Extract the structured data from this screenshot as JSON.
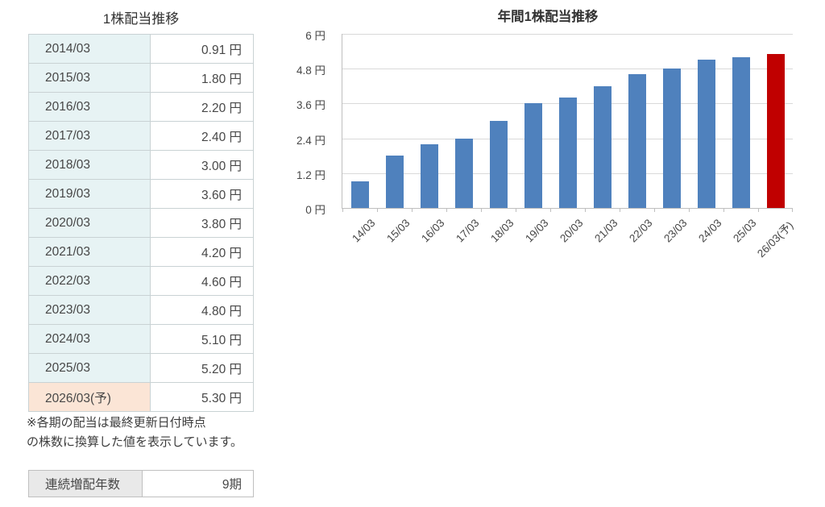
{
  "colors": {
    "bar_blue": "#4f81bd",
    "bar_red": "#c00000",
    "gridline": "#d9d9d9",
    "axis": "#bfbfbf",
    "period_cell_bg": "#e7f3f4",
    "forecast_cell_bg": "#fbe5d6",
    "summary_label_bg": "#e9e9e9",
    "text": "#474747"
  },
  "dividend_table": {
    "title": "1株配当推移",
    "rows": [
      {
        "period": "2014/03",
        "amount": "0.91 円",
        "forecast": false
      },
      {
        "period": "2015/03",
        "amount": "1.80 円",
        "forecast": false
      },
      {
        "period": "2016/03",
        "amount": "2.20 円",
        "forecast": false
      },
      {
        "period": "2017/03",
        "amount": "2.40 円",
        "forecast": false
      },
      {
        "period": "2018/03",
        "amount": "3.00 円",
        "forecast": false
      },
      {
        "period": "2019/03",
        "amount": "3.60 円",
        "forecast": false
      },
      {
        "period": "2020/03",
        "amount": "3.80 円",
        "forecast": false
      },
      {
        "period": "2021/03",
        "amount": "4.20 円",
        "forecast": false
      },
      {
        "period": "2022/03",
        "amount": "4.60 円",
        "forecast": false
      },
      {
        "period": "2023/03",
        "amount": "4.80 円",
        "forecast": false
      },
      {
        "period": "2024/03",
        "amount": "5.10 円",
        "forecast": false
      },
      {
        "period": "2025/03",
        "amount": "5.20 円",
        "forecast": false
      },
      {
        "period": "2026/03(予)",
        "amount": "5.30 円",
        "forecast": true
      }
    ],
    "footnote": [
      "※各期の配当は最終更新日付時点",
      "の株数に換算した値を表示しています。"
    ]
  },
  "summary": {
    "label": "連続増配年数",
    "value": "9期"
  },
  "chart_data": {
    "type": "bar",
    "title": "年間1株配当推移",
    "categories": [
      "14/03",
      "15/03",
      "16/03",
      "17/03",
      "18/03",
      "19/03",
      "20/03",
      "21/03",
      "22/03",
      "23/03",
      "24/03",
      "25/03",
      "26/03(予)"
    ],
    "values": [
      0.91,
      1.8,
      2.2,
      2.4,
      3.0,
      3.6,
      3.8,
      4.2,
      4.6,
      4.8,
      5.1,
      5.2,
      5.3
    ],
    "forecast_index": 12,
    "ylim": [
      0,
      6
    ],
    "yticks": [
      0,
      1.2,
      2.4,
      3.6,
      4.8,
      6
    ],
    "ytick_labels": [
      "0 円",
      "1.2 円",
      "2.4 円",
      "3.6 円",
      "4.8 円",
      "6 円"
    ],
    "xlabel": "",
    "ylabel": "",
    "grid": true,
    "legend_position": "none"
  }
}
